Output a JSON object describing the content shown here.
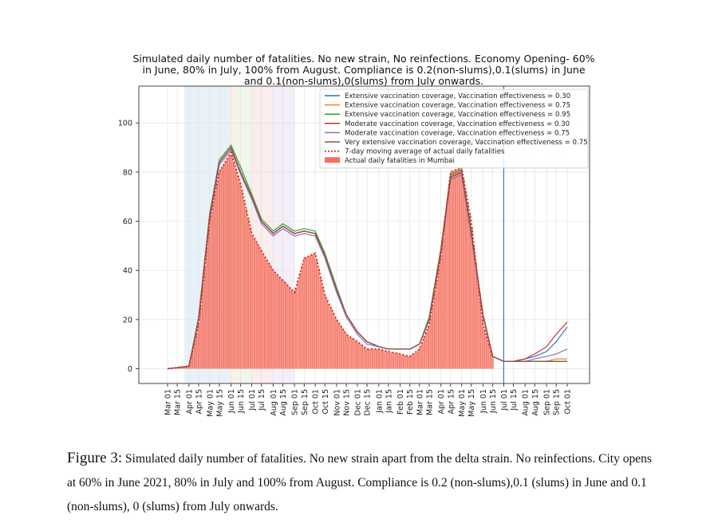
{
  "chart_data": {
    "type": "line",
    "title_lines": [
      "Simulated daily number of fatalities. No new strain, No reinfections. Economy Opening- 60%",
      "in June, 80% in July, 100% from August. Compliance is 0.2(non-slums),0.1(slums) in June",
      "and 0.1(non-slums),0(slums) from July onwards."
    ],
    "xlabel": "",
    "ylabel": "",
    "ylim": [
      -6,
      115
    ],
    "grid": true,
    "legend_position": "top-right",
    "yticks": [
      0,
      20,
      40,
      60,
      80,
      100
    ],
    "xticks": [
      "Mar 01",
      "Mar 15",
      "Apr 01",
      "Apr 15",
      "May 01",
      "May 15",
      "Jun 01",
      "Jun 15",
      "Jul 01",
      "Jul 15",
      "Aug 01",
      "Aug 15",
      "Sep 01",
      "Sep 15",
      "Oct 01",
      "Oct 15",
      "Nov 01",
      "Nov 15",
      "Dec 01",
      "Dec 15",
      "Jan 01",
      "Jan 15",
      "Feb 01",
      "Feb 15",
      "Mar 01",
      "Mar 15",
      "Apr 01",
      "Apr 15",
      "May 01",
      "May 15",
      "Jun 01",
      "Jun 15",
      "Jul 01",
      "Jul 15",
      "Aug 01",
      "Aug 15",
      "Sep 01",
      "Sep 15",
      "Oct 01"
    ],
    "x_points": [
      "Mar 01",
      "Apr 01",
      "Apr 15",
      "May 01",
      "May 15",
      "Jun 01",
      "Jun 15",
      "Jul 01",
      "Jul 15",
      "Aug 01",
      "Aug 15",
      "Sep 01",
      "Sep 15",
      "Oct 01",
      "Oct 15",
      "Nov 01",
      "Nov 15",
      "Dec 01",
      "Dec 15",
      "Jan 01",
      "Jan 15",
      "Feb 01",
      "Feb 15",
      "Mar 01",
      "Mar 15",
      "Apr 01",
      "Apr 15",
      "May 01",
      "May 15",
      "Jun 01",
      "Jun 15",
      "Jul 01",
      "Jul 15",
      "Aug 01",
      "Aug 15",
      "Sep 01",
      "Sep 15",
      "Oct 01"
    ],
    "shaded_bands": [
      {
        "from": "Mar 25",
        "to": "May 31",
        "color": "#dbe8f4"
      },
      {
        "from": "May 31",
        "to": "Jun 08",
        "color": "#fbe4cf"
      },
      {
        "from": "Jun 08",
        "to": "Jul 01",
        "color": "#e2f2dc"
      },
      {
        "from": "Jul 01",
        "to": "Aug 01",
        "color": "#f9dfe3"
      },
      {
        "from": "Aug 01",
        "to": "Sep 01",
        "color": "#ebe3f3"
      }
    ],
    "vline": {
      "x": "Jul 01 2021",
      "color": "#2f7ebf"
    },
    "series": [
      {
        "name": "Extensive vaccination coverage, Vaccination effectiveness = 0.30",
        "color": "#1f77b4",
        "values": [
          0,
          1,
          20,
          62,
          84,
          90,
          80,
          70,
          60,
          55,
          58,
          55,
          56,
          55,
          46,
          32,
          22,
          15,
          11,
          9,
          8,
          8,
          8,
          10,
          20,
          48,
          78,
          80,
          55,
          22,
          5,
          3,
          3,
          4,
          5,
          7,
          11,
          17
        ]
      },
      {
        "name": "Extensive vaccination coverage, Vaccination effectiveness = 0.75",
        "color": "#ff7f0e",
        "values": [
          0,
          1,
          20,
          62,
          84,
          90,
          80,
          70,
          60,
          55,
          58,
          55,
          56,
          55,
          46,
          32,
          22,
          15,
          11,
          9,
          8,
          8,
          8,
          10,
          20,
          48,
          78,
          80,
          55,
          22,
          5,
          3,
          3,
          3,
          3,
          3,
          4,
          4
        ]
      },
      {
        "name": "Extensive vaccination coverage, Vaccination effectiveness = 0.95",
        "color": "#2ca02c",
        "values": [
          0,
          1,
          21,
          63,
          85,
          91,
          82,
          71,
          61,
          56,
          59,
          56,
          57,
          56,
          47,
          33,
          22,
          15,
          11,
          9,
          8,
          8,
          8,
          10,
          21,
          49,
          79,
          81,
          56,
          22,
          5,
          3,
          3,
          3,
          3,
          3,
          3,
          3
        ]
      },
      {
        "name": "Moderate vaccination coverage, Vaccination effectiveness = 0.30",
        "color": "#d62728",
        "values": [
          0,
          1,
          20,
          62,
          84,
          90,
          80,
          70,
          60,
          55,
          58,
          55,
          56,
          55,
          46,
          32,
          22,
          15,
          11,
          9,
          8,
          8,
          8,
          10,
          20,
          48,
          78,
          80,
          55,
          22,
          5,
          3,
          3,
          4,
          6,
          9,
          14,
          19
        ]
      },
      {
        "name": "Moderate vaccination coverage, Vaccination effectiveness = 0.75",
        "color": "#9467bd",
        "values": [
          0,
          1,
          20,
          61,
          83,
          89,
          79,
          69,
          59,
          54,
          57,
          54,
          55,
          54,
          45,
          31,
          21,
          14,
          10,
          9,
          8,
          8,
          8,
          10,
          20,
          47,
          77,
          79,
          54,
          21,
          5,
          3,
          3,
          3,
          4,
          5,
          6,
          8
        ]
      },
      {
        "name": "Very extensive vaccination coverage, Vaccination effectiveness = 0.75",
        "color": "#8c564b",
        "values": [
          0,
          1,
          20,
          62,
          84,
          90,
          80,
          70,
          60,
          55,
          58,
          55,
          56,
          55,
          46,
          32,
          22,
          15,
          11,
          9,
          8,
          8,
          8,
          10,
          20,
          48,
          78,
          80,
          55,
          22,
          5,
          3,
          3,
          3,
          3,
          3,
          3,
          3
        ]
      }
    ],
    "moving_average": {
      "name": "7-day moving average of actual daily fatalities",
      "color": "#d62728",
      "values": [
        0,
        1,
        18,
        60,
        80,
        88,
        75,
        55,
        48,
        40,
        36,
        31,
        45,
        47,
        30,
        20,
        14,
        11,
        8,
        8,
        7,
        6,
        5,
        8,
        18,
        46,
        80,
        82,
        60,
        18,
        5
      ]
    },
    "bars": {
      "name": "Actual daily fatalities in Mumbai",
      "color": "#f5705d",
      "values": [
        0,
        1,
        18,
        60,
        80,
        88,
        75,
        55,
        48,
        40,
        36,
        31,
        45,
        47,
        30,
        20,
        14,
        11,
        8,
        8,
        7,
        6,
        5,
        8,
        18,
        46,
        80,
        82,
        60,
        18,
        5
      ]
    }
  },
  "caption": {
    "label": "Figure 3:",
    "text": "Simulated daily number of fatalities. No new strain apart from the delta strain. No reinfections. City opens at 60% in June 2021, 80% in July and 100% from August. Compliance is 0.2 (non-slums),0.1 (slums) in June and 0.1 (non-slums), 0 (slums) from July onwards."
  }
}
